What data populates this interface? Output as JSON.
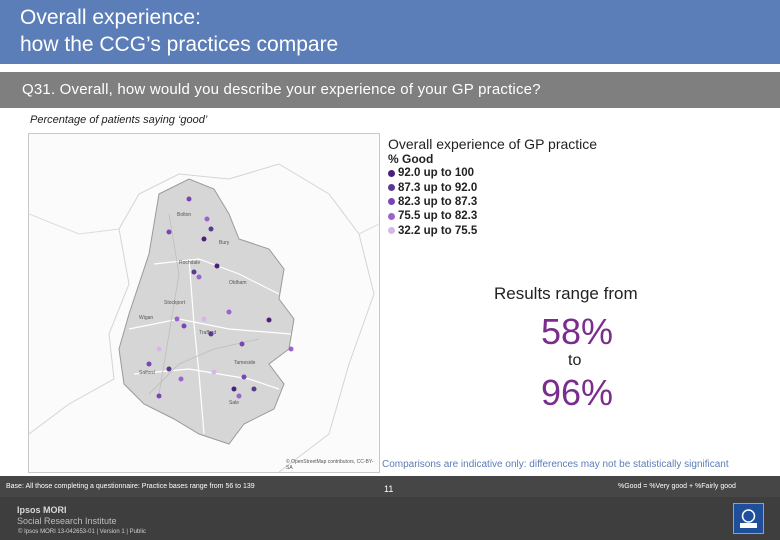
{
  "header": {
    "title_line1": "Overall experience:",
    "title_line2": "how the CCG’s practices compare"
  },
  "question": "Q31. Overall, how would you describe your experience of your GP practice?",
  "subtitle": "Percentage of patients saying ‘good’",
  "map": {
    "credit": "© OpenStreetMap contributors, CC-BY-SA",
    "place_labels": [
      "Bolton",
      "Bury",
      "Rochdale",
      "Oldham",
      "Stockport",
      "Wigan",
      "Trafford",
      "Tameside",
      "Salford",
      "Sale"
    ]
  },
  "legend": {
    "title": "Overall experience of GP practice",
    "subtitle": "% Good",
    "items": [
      {
        "label": "92.0 up to 100",
        "color": "#4b1f7a"
      },
      {
        "label": "87.3 up to 92.0",
        "color": "#5a3a8e"
      },
      {
        "label": "82.3 up to 87.3",
        "color": "#7a45b5"
      },
      {
        "label": "75.5 up to 82.3",
        "color": "#9a64cf"
      },
      {
        "label": "32.2 up to 75.5",
        "color": "#d8b6ea"
      }
    ]
  },
  "results": {
    "intro": "Results range from",
    "min": "58%",
    "to": "to",
    "max": "96%"
  },
  "disclaimer": "Comparisons are indicative only: differences may not be statistically significant",
  "footer": {
    "base": "Base: All those completing a questionnaire: Practice bases range from 56 to 139",
    "good_definition": "%Good = %Very good + %Fairly good",
    "page_number": "11",
    "brand_line1": "Ipsos MORI",
    "brand_line2": "Social Research Institute",
    "copyright": "© Ipsos MORI    13-042653-01 | Version 1 | Public"
  },
  "colors": {
    "header_blue": "#5b7db8",
    "question_grey": "#7f7f7f",
    "accent_purple": "#7b2d8e",
    "footer_dark": "#3e3e3e"
  }
}
